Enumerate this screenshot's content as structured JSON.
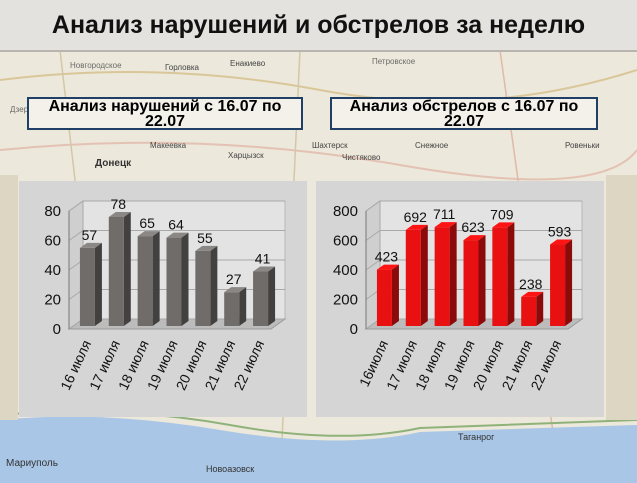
{
  "header": {
    "title": "Анализ нарушений и обстрелов за неделю"
  },
  "map": {
    "labels": [
      "Новгородское",
      "Горловка",
      "Енакиево",
      "Петровское",
      "Дзержинск",
      "Макеевка",
      "Донецк",
      "Шахтерск",
      "Снежное",
      "Чистяково",
      "Ровеньки",
      "Харцызск",
      "Мариуполь",
      "Новоазовск",
      "Таганрог"
    ]
  },
  "chart_data": [
    {
      "type": "bar",
      "title": "Анализ нарушений с 16.07 по 22.07",
      "categories": [
        "16 июля",
        "17 июля",
        "18 июля",
        "19 июля",
        "20 июля",
        "21 июля",
        "22 июля"
      ],
      "values": [
        57,
        78,
        65,
        64,
        55,
        27,
        41
      ],
      "yticks": [
        "0",
        "20",
        "40",
        "60",
        "80"
      ],
      "ylim": [
        0,
        80
      ],
      "color": "#6f6c6a"
    },
    {
      "type": "bar",
      "title": "Анализ обстрелов с 16.07 по 22.07",
      "categories": [
        "16июля",
        "17 июля",
        "18 июля",
        "19 июля",
        "20 июля",
        "21 июля",
        "22 июля"
      ],
      "values": [
        423,
        692,
        711,
        623,
        709,
        238,
        593
      ],
      "yticks": [
        "0",
        "200",
        "400",
        "600",
        "800"
      ],
      "ylim": [
        0,
        800
      ],
      "color": "#e81010"
    }
  ]
}
